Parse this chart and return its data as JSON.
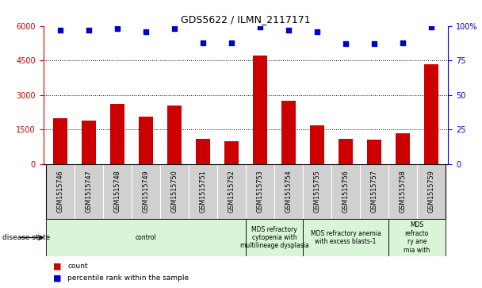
{
  "title": "GDS5622 / ILMN_2117171",
  "samples": [
    "GSM1515746",
    "GSM1515747",
    "GSM1515748",
    "GSM1515749",
    "GSM1515750",
    "GSM1515751",
    "GSM1515752",
    "GSM1515753",
    "GSM1515754",
    "GSM1515755",
    "GSM1515756",
    "GSM1515757",
    "GSM1515758",
    "GSM1515759"
  ],
  "counts": [
    2000,
    1900,
    2600,
    2050,
    2550,
    1100,
    1000,
    4700,
    2750,
    1700,
    1100,
    1050,
    1350,
    4350
  ],
  "percentiles": [
    97,
    97,
    98,
    96,
    98,
    88,
    88,
    99,
    97,
    96,
    87,
    87,
    88,
    99
  ],
  "ylim_left": [
    0,
    6000
  ],
  "ylim_right": [
    0,
    100
  ],
  "yticks_left": [
    0,
    1500,
    3000,
    4500,
    6000
  ],
  "yticks_right": [
    0,
    25,
    50,
    75,
    100
  ],
  "bar_color": "#cc0000",
  "dot_color": "#0000cc",
  "disease_groups": [
    {
      "label": "control",
      "start": 0,
      "end": 7,
      "color": "#d8f5d8"
    },
    {
      "label": "MDS refractory\ncytopenia with\nmultilineage dysplasia",
      "start": 7,
      "end": 9,
      "color": "#d8f5d8"
    },
    {
      "label": "MDS refractory anemia\nwith excess blasts-1",
      "start": 9,
      "end": 12,
      "color": "#d8f5d8"
    },
    {
      "label": "MDS\nrefracto\nry ane\nmia with",
      "start": 12,
      "end": 14,
      "color": "#d8f5d8"
    }
  ],
  "xtick_bg": "#d0d0d0",
  "grid_color": "black",
  "bar_width": 0.5,
  "left_spine_color": "#cc0000",
  "right_spine_color": "#0000cc"
}
